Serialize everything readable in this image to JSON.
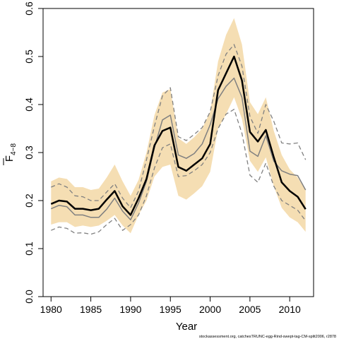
{
  "chart_data": {
    "type": "line",
    "xlabel": "Year",
    "ylabel": "F",
    "ylabel_subscript": "4−8",
    "xlim": [
      1979,
      2013
    ],
    "ylim": [
      0,
      0.6
    ],
    "x_ticks": [
      1980,
      1985,
      1990,
      1995,
      2000,
      2005,
      2010
    ],
    "y_ticks": [
      0.0,
      0.1,
      0.2,
      0.3,
      0.4,
      0.5,
      0.6
    ],
    "y_tick_labels": [
      "0.0",
      "0.1",
      "0.2",
      "0.3",
      "0.4",
      "0.5",
      "0.6"
    ],
    "x": [
      1980,
      1981,
      1982,
      1983,
      1984,
      1985,
      1986,
      1987,
      1988,
      1989,
      1990,
      1991,
      1992,
      1993,
      1994,
      1995,
      1996,
      1997,
      1998,
      1999,
      2000,
      2001,
      2002,
      2003,
      2004,
      2005,
      2006,
      2007,
      2008,
      2009,
      2010,
      2011,
      2012
    ],
    "series": [
      {
        "style": "band",
        "color": "#f5deb3",
        "upper": [
          0.24,
          0.248,
          0.245,
          0.228,
          0.228,
          0.222,
          0.225,
          0.248,
          0.275,
          0.24,
          0.21,
          0.243,
          0.3,
          0.378,
          0.425,
          0.432,
          0.33,
          0.318,
          0.332,
          0.35,
          0.385,
          0.49,
          0.545,
          0.58,
          0.525,
          0.405,
          0.38,
          0.415,
          0.345,
          0.295,
          0.265,
          0.248,
          0.222
        ],
        "lower": [
          0.15,
          0.155,
          0.155,
          0.145,
          0.148,
          0.145,
          0.148,
          0.158,
          0.17,
          0.148,
          0.132,
          0.17,
          0.2,
          0.25,
          0.27,
          0.275,
          0.21,
          0.202,
          0.215,
          0.23,
          0.26,
          0.35,
          0.38,
          0.415,
          0.37,
          0.283,
          0.26,
          0.29,
          0.23,
          0.185,
          0.165,
          0.155,
          0.135
        ]
      },
      {
        "style": "dashed",
        "color": "#808080",
        "values": [
          0.228,
          0.235,
          0.228,
          0.21,
          0.208,
          0.2,
          0.2,
          0.218,
          0.235,
          0.205,
          0.185,
          0.22,
          0.285,
          0.355,
          0.418,
          0.435,
          0.333,
          0.325,
          0.338,
          0.352,
          0.385,
          0.46,
          0.505,
          0.525,
          0.48,
          0.375,
          0.34,
          0.4,
          0.365,
          0.32,
          0.318,
          0.32,
          0.285
        ]
      },
      {
        "style": "dashed",
        "color": "#808080",
        "values": [
          0.138,
          0.145,
          0.142,
          0.132,
          0.133,
          0.13,
          0.135,
          0.15,
          0.163,
          0.138,
          0.15,
          0.17,
          0.21,
          0.268,
          0.31,
          0.318,
          0.25,
          0.252,
          0.262,
          0.275,
          0.3,
          0.35,
          0.38,
          0.39,
          0.34,
          0.253,
          0.238,
          0.278,
          0.23,
          0.2,
          0.19,
          0.18,
          0.158
        ]
      },
      {
        "style": "solid-thin",
        "color": "#808080",
        "values": [
          0.183,
          0.19,
          0.187,
          0.17,
          0.17,
          0.165,
          0.165,
          0.182,
          0.205,
          0.178,
          0.16,
          0.195,
          0.24,
          0.31,
          0.368,
          0.378,
          0.295,
          0.288,
          0.298,
          0.318,
          0.358,
          0.412,
          0.438,
          0.455,
          0.415,
          0.303,
          0.292,
          0.335,
          0.282,
          0.262,
          0.255,
          0.252,
          0.222
        ]
      },
      {
        "style": "solid-thick",
        "color": "#000000",
        "values": [
          0.193,
          0.2,
          0.198,
          0.183,
          0.183,
          0.18,
          0.183,
          0.202,
          0.22,
          0.188,
          0.17,
          0.205,
          0.245,
          0.315,
          0.345,
          0.352,
          0.27,
          0.262,
          0.275,
          0.288,
          0.318,
          0.43,
          0.465,
          0.5,
          0.45,
          0.343,
          0.323,
          0.347,
          0.29,
          0.238,
          0.22,
          0.208,
          0.182
        ]
      }
    ],
    "footer": "stockassessment.org, catchesTRUNC-egg-Rind-swept-tag-CM-split2006, r2878"
  }
}
